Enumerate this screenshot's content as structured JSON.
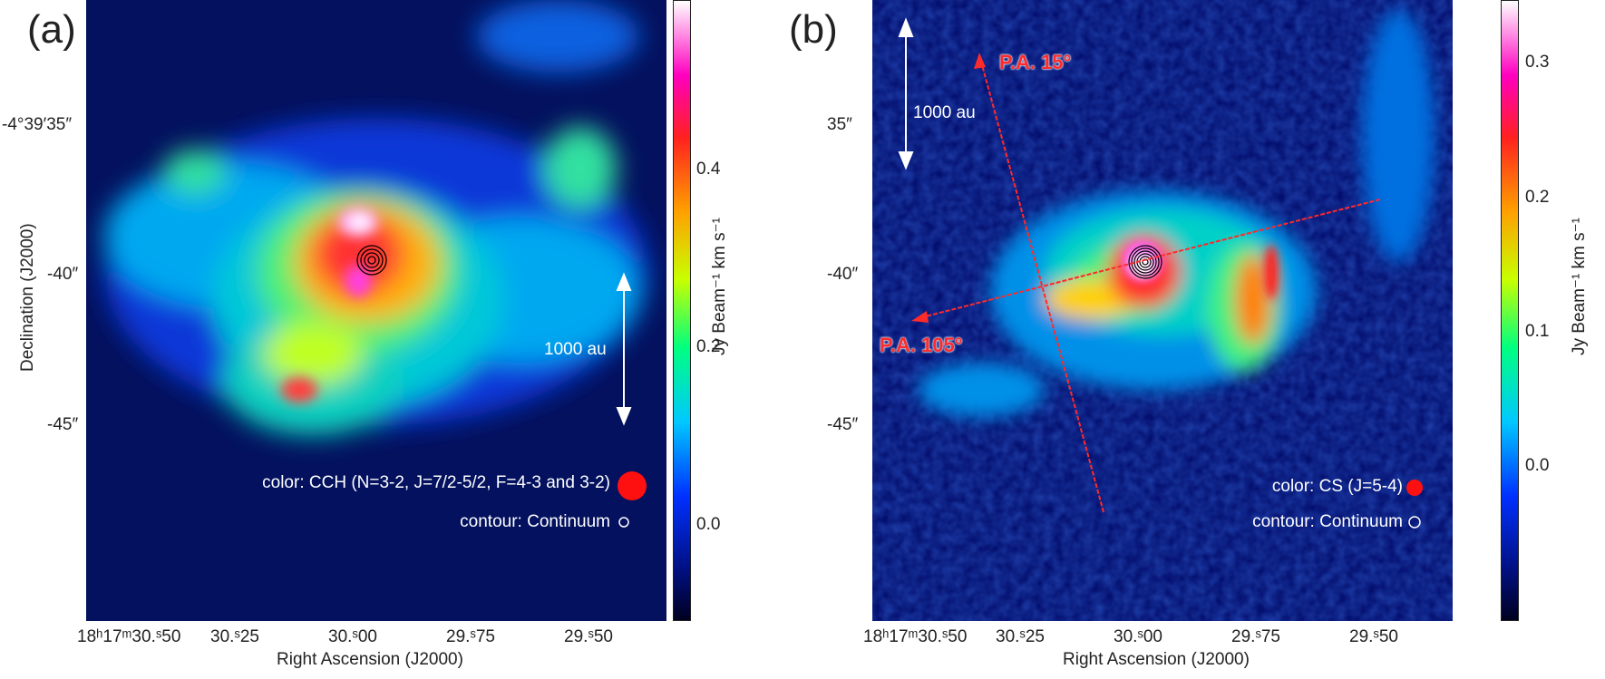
{
  "panel_a": {
    "label": "(a)",
    "dec_ticks": [
      "-4°39′35″",
      "-40″",
      "-45″"
    ],
    "ra_ticks": [
      "18ʰ17ᵐ30.ˢ50",
      "30.ˢ25",
      "30.ˢ00",
      "29.ˢ75",
      "29.ˢ50"
    ],
    "xlabel": "Right Ascension (J2000)",
    "ylabel": "Declination (J2000)",
    "scale_label": "1000 au",
    "legend_color": "color: CCH (N=3-2, J=7/2-5/2, F=4-3 and 3-2)",
    "legend_contour": "contour: Continuum",
    "cbar_ticks": [
      "0.4",
      "0.2",
      "0.0"
    ],
    "cbar_label": "Jy Beam⁻¹ km s⁻¹"
  },
  "panel_b": {
    "label": "(b)",
    "dec_ticks": [
      "35″",
      "-40″",
      "-45″"
    ],
    "ra_ticks": [
      "18ʰ17ᵐ30.ˢ50",
      "30.ˢ25",
      "30.ˢ00",
      "29.ˢ75",
      "29.ˢ50"
    ],
    "xlabel": "Right Ascension (J2000)",
    "scale_label": "1000 au",
    "pa_15": "P.A. 15°",
    "pa_105": "P.A. 105°",
    "legend_color": "color: CS (J=5-4)",
    "legend_contour": "contour: Continuum",
    "cbar_ticks": [
      "0.3",
      "0.2",
      "0.1",
      "0.0"
    ],
    "cbar_label": "Jy Beam⁻¹ km s⁻¹"
  },
  "colors": {
    "arrow_red": "#ff2a2a",
    "beam_red": "#ff1010",
    "background_blue": "#04106a"
  }
}
